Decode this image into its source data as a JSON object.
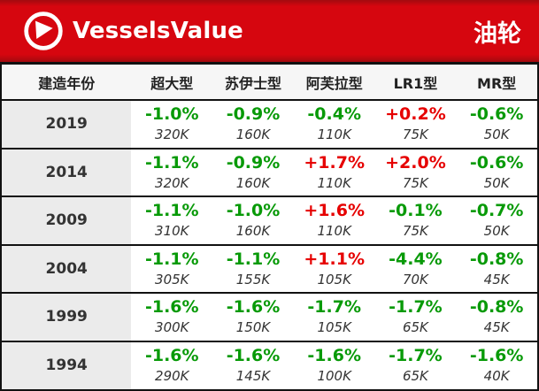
{
  "banner": {
    "brand": "VesselsValue",
    "title": "油轮"
  },
  "colors": {
    "banner_red": "#d6060f",
    "banner_red_dark": "#a20a0f",
    "frame": "#111111",
    "header_bg": "#f6f6f6",
    "year_bg": "#ebebeb",
    "positive": "#e60000",
    "negative": "#089a08"
  },
  "chart_data": {
    "type": "table",
    "title": "油轮",
    "columns": [
      "建造年份",
      "超大型",
      "苏伊士型",
      "阿芙拉型",
      "LR1型",
      "MR型"
    ],
    "rows": [
      {
        "year": "2019",
        "cells": [
          {
            "change": "-1.0%",
            "value": "320K"
          },
          {
            "change": "-0.9%",
            "value": "160K"
          },
          {
            "change": "-0.4%",
            "value": "110K"
          },
          {
            "change": "+0.2%",
            "value": "75K"
          },
          {
            "change": "-0.6%",
            "value": "50K"
          }
        ]
      },
      {
        "year": "2014",
        "cells": [
          {
            "change": "-1.1%",
            "value": "320K"
          },
          {
            "change": "-0.9%",
            "value": "160K"
          },
          {
            "change": "+1.7%",
            "value": "110K"
          },
          {
            "change": "+2.0%",
            "value": "75K"
          },
          {
            "change": "-0.6%",
            "value": "50K"
          }
        ]
      },
      {
        "year": "2009",
        "cells": [
          {
            "change": "-1.1%",
            "value": "310K"
          },
          {
            "change": "-1.0%",
            "value": "160K"
          },
          {
            "change": "+1.6%",
            "value": "110K"
          },
          {
            "change": "-0.1%",
            "value": "75K"
          },
          {
            "change": "-0.7%",
            "value": "50K"
          }
        ]
      },
      {
        "year": "2004",
        "cells": [
          {
            "change": "-1.1%",
            "value": "305K"
          },
          {
            "change": "-1.1%",
            "value": "155K"
          },
          {
            "change": "+1.1%",
            "value": "105K"
          },
          {
            "change": "-4.4%",
            "value": "70K"
          },
          {
            "change": "-0.8%",
            "value": "45K"
          }
        ]
      },
      {
        "year": "1999",
        "cells": [
          {
            "change": "-1.6%",
            "value": "300K"
          },
          {
            "change": "-1.6%",
            "value": "150K"
          },
          {
            "change": "-1.7%",
            "value": "105K"
          },
          {
            "change": "-1.7%",
            "value": "65K"
          },
          {
            "change": "-0.8%",
            "value": "45K"
          }
        ]
      },
      {
        "year": "1994",
        "cells": [
          {
            "change": "-1.6%",
            "value": "290K"
          },
          {
            "change": "-1.6%",
            "value": "145K"
          },
          {
            "change": "-1.6%",
            "value": "100K"
          },
          {
            "change": "-1.7%",
            "value": "65K"
          },
          {
            "change": "-1.6%",
            "value": "40K"
          }
        ]
      }
    ]
  }
}
